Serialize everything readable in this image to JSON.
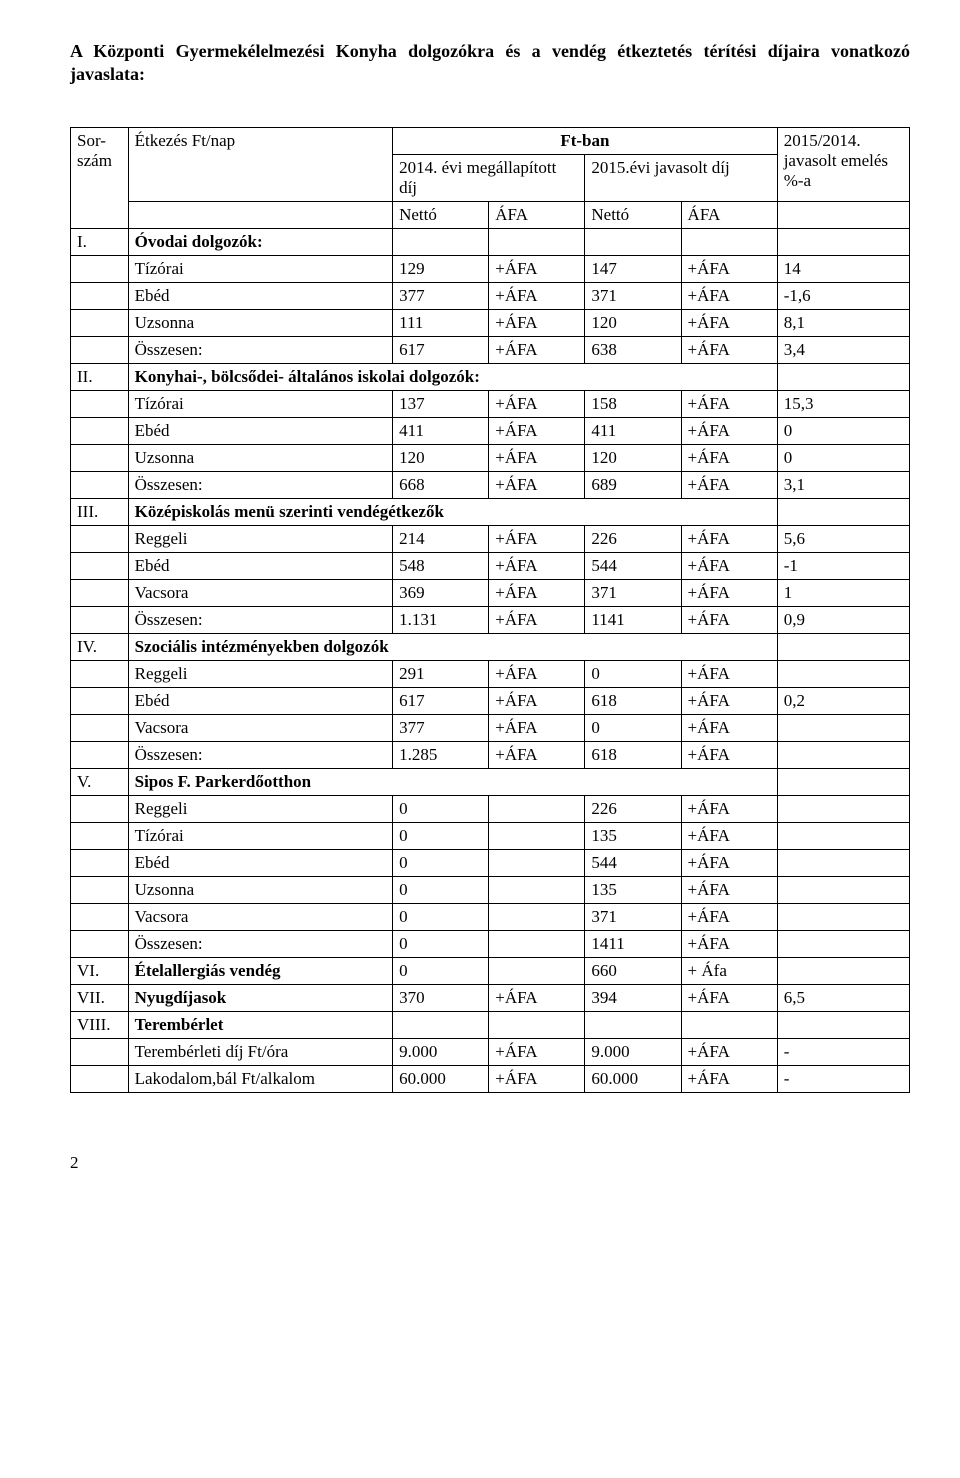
{
  "intro": "A Központi Gyermekélelmezési Konyha dolgozókra és a vendég étkeztetés térítési díjaira vonatkozó javaslata:",
  "ftban": "Ft-ban",
  "header": {
    "sorszam": "Sor-szám",
    "etkezes": "Étkezés Ft/nap",
    "y2014": "2014. évi megállapított díj",
    "y2015": "2015.évi javasolt díj",
    "pct": "2015/2014. javasolt emelés %-a",
    "netto": "Nettó",
    "afa": "ÁFA"
  },
  "sections": {
    "i": {
      "num": "I.",
      "title": "Óvodai dolgozók:"
    },
    "ii": {
      "num": "II.",
      "title": "Konyhai-, bölcsődei- általános iskolai dolgozók:"
    },
    "iii": {
      "num": "III.",
      "title": "Középiskolás menü szerinti vendégétkezők"
    },
    "iv": {
      "num": "IV.",
      "title": "Szociális intézményekben dolgozók"
    },
    "v": {
      "num": "V.",
      "title": "Sipos F. Parkerdőotthon"
    },
    "vi": {
      "num": "VI.",
      "title": "Ételallergiás vendég",
      "a": "0",
      "b": "",
      "c": "660",
      "d": "+ Áfa",
      "e": ""
    },
    "vii": {
      "num": "VII.",
      "title": "Nyugdíjasok",
      "a": "370",
      "b": "+ÁFA",
      "c": "394",
      "d": "+ÁFA",
      "e": "6,5"
    },
    "viii": {
      "num": "VIII.",
      "title": "Terembérlet"
    }
  },
  "rows": {
    "i": [
      {
        "name": "Tízórai",
        "a": "129",
        "b": "+ÁFA",
        "c": "147",
        "d": "+ÁFA",
        "e": "14"
      },
      {
        "name": "Ebéd",
        "a": "377",
        "b": "+ÁFA",
        "c": "371",
        "d": "+ÁFA",
        "e": "-1,6"
      },
      {
        "name": "Uzsonna",
        "a": "111",
        "b": "+ÁFA",
        "c": "120",
        "d": "+ÁFA",
        "e": "8,1"
      },
      {
        "name": "Összesen:",
        "a": "617",
        "b": "+ÁFA",
        "c": "638",
        "d": "+ÁFA",
        "e": "3,4"
      }
    ],
    "ii": [
      {
        "name": "Tízórai",
        "a": "137",
        "b": "+ÁFA",
        "c": "158",
        "d": "+ÁFA",
        "e": "15,3"
      },
      {
        "name": "Ebéd",
        "a": "411",
        "b": "+ÁFA",
        "c": "411",
        "d": "+ÁFA",
        "e": "0"
      },
      {
        "name": "Uzsonna",
        "a": "120",
        "b": "+ÁFA",
        "c": "120",
        "d": "+ÁFA",
        "e": "0"
      },
      {
        "name": "Összesen:",
        "a": "668",
        "b": "+ÁFA",
        "c": "689",
        "d": "+ÁFA",
        "e": "3,1"
      }
    ],
    "iii": [
      {
        "name": "Reggeli",
        "a": "214",
        "b": "+ÁFA",
        "c": "226",
        "d": "+ÁFA",
        "e": "5,6"
      },
      {
        "name": "Ebéd",
        "a": "548",
        "b": "+ÁFA",
        "c": "544",
        "d": "+ÁFA",
        "e": "-1"
      },
      {
        "name": "Vacsora",
        "a": "369",
        "b": "+ÁFA",
        "c": "371",
        "d": "+ÁFA",
        "e": "1"
      },
      {
        "name": "Összesen:",
        "a": "1.131",
        "b": "+ÁFA",
        "c": "1141",
        "d": "+ÁFA",
        "e": "0,9"
      }
    ],
    "iv": [
      {
        "name": "Reggeli",
        "a": "291",
        "b": "+ÁFA",
        "c": "0",
        "d": "+ÁFA",
        "e": ""
      },
      {
        "name": "Ebéd",
        "a": "617",
        "b": "+ÁFA",
        "c": "618",
        "d": "+ÁFA",
        "e": "0,2"
      },
      {
        "name": "Vacsora",
        "a": "377",
        "b": "+ÁFA",
        "c": "0",
        "d": "+ÁFA",
        "e": ""
      },
      {
        "name": "Összesen:",
        "a": "1.285",
        "b": "+ÁFA",
        "c": "618",
        "d": "+ÁFA",
        "e": ""
      }
    ],
    "v": [
      {
        "name": "Reggeli",
        "a": "0",
        "b": "",
        "c": "226",
        "d": "+ÁFA",
        "e": ""
      },
      {
        "name": "Tízórai",
        "a": "0",
        "b": "",
        "c": "135",
        "d": "+ÁFA",
        "e": ""
      },
      {
        "name": "Ebéd",
        "a": "0",
        "b": "",
        "c": "544",
        "d": "+ÁFA",
        "e": ""
      },
      {
        "name": "Uzsonna",
        "a": "0",
        "b": "",
        "c": "135",
        "d": "+ÁFA",
        "e": ""
      },
      {
        "name": "Vacsora",
        "a": "0",
        "b": "",
        "c": "371",
        "d": "+ÁFA",
        "e": ""
      },
      {
        "name": "Összesen:",
        "a": "0",
        "b": "",
        "c": "1411",
        "d": "+ÁFA",
        "e": ""
      }
    ],
    "viii": [
      {
        "name": "Terembérleti díj Ft/óra",
        "a": "9.000",
        "b": "+ÁFA",
        "c": "9.000",
        "d": "+ÁFA",
        "e": "-"
      },
      {
        "name": "Lakodalom,bál Ft/alkalom",
        "a": "60.000",
        "b": "+ÁFA",
        "c": "60.000",
        "d": "+ÁFA",
        "e": "-"
      }
    ]
  },
  "pagenum": "2"
}
